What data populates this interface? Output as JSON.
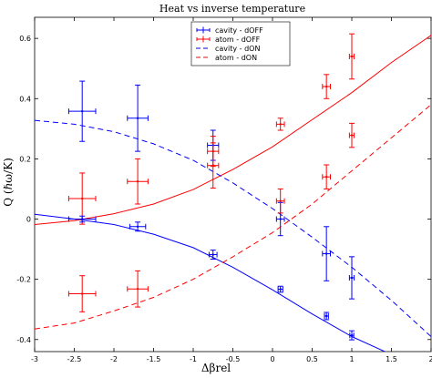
{
  "chart_data": {
    "type": "scatter",
    "title": "Heat vs inverse temperature",
    "xlabel": "Δβrel",
    "ylabel": "Q (ℏω/K)",
    "xlim": [
      -3,
      2
    ],
    "ylim": [
      -0.44,
      0.67
    ],
    "x_ticks": [
      -3,
      -2.5,
      -2,
      -1.5,
      -1,
      -0.5,
      0,
      0.5,
      1,
      1.5,
      2
    ],
    "x_tick_labels": [
      "-3",
      "-2.5",
      "-2",
      "-1.5",
      "-1",
      "-0.5",
      "0",
      "0.5",
      "1",
      "1.5",
      "2"
    ],
    "y_ticks": [
      -0.4,
      -0.2,
      0,
      0.2,
      0.4,
      0.6
    ],
    "y_tick_labels": [
      "-0.4",
      "-0.2",
      "0",
      "0.2",
      "0.4",
      "0.6"
    ],
    "grid": false,
    "legend_position": "top-center",
    "series": [
      {
        "name": "cavity - dOFF",
        "kind": "points",
        "color": "#0000ff",
        "points": [
          {
            "x": -2.4,
            "y": 0.358,
            "xerr": 0.17,
            "yerr": 0.1
          },
          {
            "x": -1.7,
            "y": 0.335,
            "xerr": 0.13,
            "yerr": 0.11
          },
          {
            "x": -0.75,
            "y": 0.245,
            "xerr": 0.07,
            "yerr": 0.05
          },
          {
            "x": 0.1,
            "y": 0.0,
            "xerr": 0.05,
            "yerr": 0.055
          },
          {
            "x": 0.68,
            "y": -0.115,
            "xerr": 0.05,
            "yerr": 0.09
          },
          {
            "x": 1.0,
            "y": -0.195,
            "xerr": 0.03,
            "yerr": 0.07
          }
        ]
      },
      {
        "name": "atom - dOFF",
        "kind": "points",
        "color": "#ff0000",
        "points": [
          {
            "x": -2.4,
            "y": 0.068,
            "xerr": 0.17,
            "yerr": 0.085
          },
          {
            "x": -1.7,
            "y": 0.125,
            "xerr": 0.13,
            "yerr": 0.075
          },
          {
            "x": -0.75,
            "y": 0.225,
            "xerr": 0.07,
            "yerr": 0.05
          },
          {
            "x": 0.1,
            "y": 0.06,
            "xerr": 0.05,
            "yerr": 0.04
          },
          {
            "x": 0.68,
            "y": 0.14,
            "xerr": 0.05,
            "yerr": 0.04
          },
          {
            "x": 1.0,
            "y": 0.278,
            "xerr": 0.03,
            "yerr": 0.04
          }
        ]
      },
      {
        "name": "cavity - dON",
        "kind": "points",
        "color": "#0000ff",
        "points": [
          {
            "x": -2.4,
            "y": 0.0,
            "xerr": 0.17,
            "yerr": 0.01
          },
          {
            "x": -1.7,
            "y": -0.025,
            "xerr": 0.1,
            "yerr": 0.015
          },
          {
            "x": -0.75,
            "y": -0.118,
            "xerr": 0.05,
            "yerr": 0.015
          },
          {
            "x": 0.1,
            "y": -0.233,
            "xerr": 0.03,
            "yerr": 0.01
          },
          {
            "x": 0.68,
            "y": -0.322,
            "xerr": 0.025,
            "yerr": 0.012
          },
          {
            "x": 1.0,
            "y": -0.386,
            "xerr": 0.025,
            "yerr": 0.015
          }
        ]
      },
      {
        "name": "atom - dON",
        "kind": "points",
        "color": "#ff0000",
        "points": [
          {
            "x": -2.4,
            "y": -0.248,
            "xerr": 0.17,
            "yerr": 0.06
          },
          {
            "x": -1.7,
            "y": -0.232,
            "xerr": 0.13,
            "yerr": 0.06
          },
          {
            "x": -0.75,
            "y": 0.178,
            "xerr": 0.07,
            "yerr": 0.075
          },
          {
            "x": 0.1,
            "y": 0.315,
            "xerr": 0.05,
            "yerr": 0.02
          },
          {
            "x": 0.68,
            "y": 0.44,
            "xerr": 0.05,
            "yerr": 0.04
          },
          {
            "x": 1.0,
            "y": 0.54,
            "xerr": 0.03,
            "yerr": 0.075
          }
        ]
      },
      {
        "name": "cavity - dOFF",
        "kind": "line",
        "color": "#0000ff",
        "dash": false,
        "x": [
          -3,
          -2.5,
          -2,
          -1.5,
          -1,
          -0.5,
          0,
          0.5,
          1,
          1.5
        ],
        "y": [
          0.016,
          0.0,
          -0.018,
          -0.05,
          -0.095,
          -0.16,
          -0.235,
          -0.315,
          -0.39,
          -0.45
        ]
      },
      {
        "name": "atom - dOFF",
        "kind": "line",
        "color": "#ff0000",
        "dash": false,
        "x": [
          -3,
          -2.5,
          -2,
          -1.5,
          -1,
          -0.5,
          0,
          0.5,
          1,
          1.5,
          2
        ],
        "y": [
          -0.018,
          -0.005,
          0.018,
          0.05,
          0.098,
          0.165,
          0.24,
          0.33,
          0.42,
          0.52,
          0.61
        ]
      },
      {
        "name": "cavity - dON",
        "kind": "line",
        "color": "#0000ff",
        "dash": true,
        "x": [
          -3,
          -2.5,
          -2,
          -1.5,
          -1,
          -0.5,
          0,
          0.5,
          1,
          1.5,
          2
        ],
        "y": [
          0.328,
          0.315,
          0.29,
          0.25,
          0.195,
          0.12,
          0.035,
          -0.06,
          -0.16,
          -0.27,
          -0.39
        ]
      },
      {
        "name": "atom - dON",
        "kind": "line",
        "color": "#ff0000",
        "dash": true,
        "x": [
          -3,
          -2.5,
          -2,
          -1.5,
          -1,
          -0.5,
          0,
          0.5,
          1,
          1.5,
          2
        ],
        "y": [
          -0.365,
          -0.345,
          -0.305,
          -0.26,
          -0.2,
          -0.125,
          -0.045,
          0.05,
          0.16,
          0.27,
          0.38
        ]
      }
    ],
    "legend": [
      {
        "label": "cavity - dOFF",
        "color": "#0000ff",
        "style": "errorbar"
      },
      {
        "label": "atom - dOFF",
        "color": "#ff0000",
        "style": "errorbar"
      },
      {
        "label": "cavity - dON",
        "color": "#0000ff",
        "style": "dashed"
      },
      {
        "label": "atom - dON",
        "color": "#ff0000",
        "style": "dashed"
      }
    ]
  }
}
